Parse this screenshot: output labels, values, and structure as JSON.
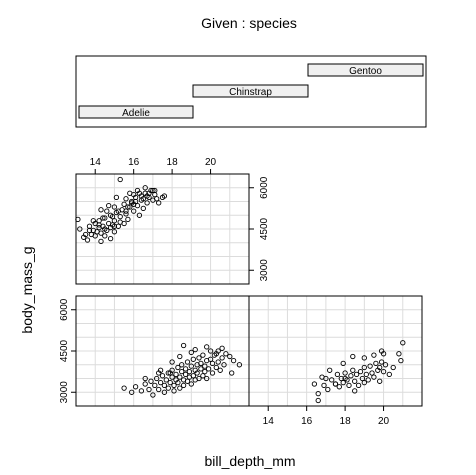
{
  "chart_data": {
    "type": "scatter",
    "title": "Given : species",
    "xlabel": "bill_depth_mm",
    "ylabel": "body_mass_g",
    "xlim": [
      13,
      22
    ],
    "ylim": [
      2500,
      6500
    ],
    "x_ticks": [
      "14",
      "16",
      "18",
      "20"
    ],
    "y_ticks": [
      "3000",
      "4500",
      "6000"
    ],
    "grid": true,
    "given_levels": [
      "Adelie",
      "Chinstrap",
      "Gentoo"
    ],
    "panels": [
      {
        "species": "Gentoo",
        "points": [
          [
            13.2,
            4500
          ],
          [
            13.4,
            4200
          ],
          [
            13.6,
            4100
          ],
          [
            13.7,
            4600
          ],
          [
            13.8,
            4300
          ],
          [
            13.9,
            4450
          ],
          [
            14.0,
            4700
          ],
          [
            14.1,
            4400
          ],
          [
            14.2,
            4550
          ],
          [
            14.2,
            4800
          ],
          [
            14.3,
            4350
          ],
          [
            14.4,
            4600
          ],
          [
            14.5,
            4250
          ],
          [
            14.5,
            4900
          ],
          [
            14.6,
            4450
          ],
          [
            14.7,
            4700
          ],
          [
            14.8,
            4550
          ],
          [
            14.8,
            5000
          ],
          [
            14.9,
            4650
          ],
          [
            15.0,
            4400
          ],
          [
            15.0,
            4800
          ],
          [
            15.1,
            5100
          ],
          [
            15.2,
            4600
          ],
          [
            15.3,
            4950
          ],
          [
            15.4,
            5200
          ],
          [
            15.5,
            4700
          ],
          [
            15.5,
            5400
          ],
          [
            15.6,
            5050
          ],
          [
            15.7,
            4850
          ],
          [
            15.8,
            5300
          ],
          [
            15.9,
            5500
          ],
          [
            16.0,
            5150
          ],
          [
            16.1,
            5650
          ],
          [
            16.2,
            5350
          ],
          [
            16.3,
            5000
          ],
          [
            16.4,
            5550
          ],
          [
            16.5,
            5250
          ],
          [
            16.6,
            5800
          ],
          [
            16.7,
            5450
          ],
          [
            16.8,
            5650
          ],
          [
            16.9,
            5900
          ],
          [
            17.0,
            5550
          ],
          [
            17.1,
            5750
          ],
          [
            17.3,
            5450
          ],
          [
            17.5,
            5650
          ],
          [
            14.3,
            5200
          ],
          [
            14.7,
            5350
          ],
          [
            15.1,
            5650
          ],
          [
            15.3,
            6300
          ],
          [
            15.8,
            5800
          ],
          [
            16.2,
            5900
          ],
          [
            16.6,
            6000
          ],
          [
            15.0,
            5300
          ],
          [
            14.6,
            5150
          ],
          [
            15.9,
            5450
          ],
          [
            13.5,
            4300
          ],
          [
            13.9,
            4800
          ],
          [
            14.4,
            4900
          ],
          [
            15.6,
            5600
          ],
          [
            16.0,
            5400
          ],
          [
            16.4,
            5700
          ],
          [
            16.8,
            5800
          ],
          [
            17.0,
            5900
          ],
          [
            17.2,
            5600
          ],
          [
            14.2,
            4650
          ],
          [
            14.9,
            4950
          ],
          [
            15.2,
            5150
          ],
          [
            15.7,
            5300
          ],
          [
            16.1,
            5500
          ],
          [
            16.5,
            5600
          ],
          [
            13.1,
            4850
          ],
          [
            13.7,
            4450
          ],
          [
            14.0,
            4250
          ],
          [
            14.3,
            4050
          ],
          [
            14.8,
            4150
          ],
          [
            15.3,
            4750
          ],
          [
            15.6,
            5150
          ],
          [
            16.0,
            5750
          ],
          [
            16.3,
            5800
          ],
          [
            16.7,
            5700
          ],
          [
            17.1,
            5900
          ],
          [
            17.6,
            5700
          ],
          [
            14.5,
            4500
          ],
          [
            15.0,
            4600
          ]
        ]
      },
      {
        "species": "Adelie",
        "points": [
          [
            15.5,
            3150
          ],
          [
            15.9,
            3000
          ],
          [
            16.1,
            3200
          ],
          [
            16.4,
            3050
          ],
          [
            16.6,
            3300
          ],
          [
            16.8,
            3100
          ],
          [
            16.9,
            3400
          ],
          [
            17.0,
            2900
          ],
          [
            17.1,
            3250
          ],
          [
            17.2,
            3500
          ],
          [
            17.3,
            3100
          ],
          [
            17.4,
            3350
          ],
          [
            17.5,
            3600
          ],
          [
            17.6,
            3000
          ],
          [
            17.6,
            3250
          ],
          [
            17.7,
            3450
          ],
          [
            17.8,
            3700
          ],
          [
            17.8,
            3150
          ],
          [
            17.9,
            3350
          ],
          [
            18.0,
            3550
          ],
          [
            18.0,
            3800
          ],
          [
            18.1,
            3250
          ],
          [
            18.1,
            3050
          ],
          [
            18.2,
            3450
          ],
          [
            18.2,
            3650
          ],
          [
            18.3,
            3900
          ],
          [
            18.3,
            3350
          ],
          [
            18.4,
            3550
          ],
          [
            18.4,
            3150
          ],
          [
            18.5,
            3750
          ],
          [
            18.5,
            4000
          ],
          [
            18.6,
            3450
          ],
          [
            18.6,
            3250
          ],
          [
            18.7,
            3650
          ],
          [
            18.7,
            3850
          ],
          [
            18.8,
            3400
          ],
          [
            18.8,
            4100
          ],
          [
            18.9,
            3550
          ],
          [
            18.9,
            3750
          ],
          [
            19.0,
            3300
          ],
          [
            19.0,
            3950
          ],
          [
            19.1,
            3600
          ],
          [
            19.1,
            4200
          ],
          [
            19.2,
            3450
          ],
          [
            19.2,
            3800
          ],
          [
            19.3,
            4000
          ],
          [
            19.3,
            3700
          ],
          [
            19.4,
            3500
          ],
          [
            19.4,
            4250
          ],
          [
            19.5,
            3850
          ],
          [
            19.5,
            4050
          ],
          [
            19.6,
            3600
          ],
          [
            19.6,
            4350
          ],
          [
            19.7,
            3950
          ],
          [
            19.7,
            3750
          ],
          [
            19.8,
            4150
          ],
          [
            19.8,
            3500
          ],
          [
            19.9,
            3850
          ],
          [
            20.0,
            4200
          ],
          [
            20.0,
            4500
          ],
          [
            20.1,
            3700
          ],
          [
            20.1,
            4050
          ],
          [
            20.2,
            4350
          ],
          [
            20.3,
            3900
          ],
          [
            20.3,
            4400
          ],
          [
            20.4,
            4100
          ],
          [
            20.5,
            3800
          ],
          [
            20.6,
            4250
          ],
          [
            20.6,
            4600
          ],
          [
            20.7,
            4000
          ],
          [
            20.8,
            4400
          ],
          [
            21.0,
            4300
          ],
          [
            21.1,
            3700
          ],
          [
            21.2,
            4150
          ],
          [
            21.5,
            4000
          ],
          [
            17.4,
            3800
          ],
          [
            18.0,
            4100
          ],
          [
            18.6,
            4700
          ],
          [
            19.2,
            4550
          ],
          [
            19.8,
            4650
          ],
          [
            20.4,
            4500
          ],
          [
            19.0,
            4450
          ],
          [
            18.4,
            4300
          ],
          [
            17.9,
            3700
          ],
          [
            16.6,
            3500
          ],
          [
            17.3,
            3700
          ]
        ]
      },
      {
        "species": "Chinstrap",
        "points": [
          [
            16.4,
            3300
          ],
          [
            16.6,
            2950
          ],
          [
            16.6,
            2700
          ],
          [
            16.9,
            3250
          ],
          [
            17.0,
            3500
          ],
          [
            17.1,
            3100
          ],
          [
            17.3,
            3450
          ],
          [
            17.5,
            3300
          ],
          [
            17.6,
            3650
          ],
          [
            17.7,
            3200
          ],
          [
            17.8,
            3500
          ],
          [
            17.9,
            3350
          ],
          [
            18.0,
            3700
          ],
          [
            18.1,
            3450
          ],
          [
            18.2,
            3250
          ],
          [
            18.3,
            3600
          ],
          [
            18.4,
            3800
          ],
          [
            18.5,
            3400
          ],
          [
            18.6,
            3650
          ],
          [
            18.7,
            3250
          ],
          [
            18.8,
            3750
          ],
          [
            18.9,
            3500
          ],
          [
            19.0,
            3900
          ],
          [
            19.0,
            3350
          ],
          [
            19.1,
            3650
          ],
          [
            19.2,
            3450
          ],
          [
            19.3,
            3950
          ],
          [
            19.4,
            3700
          ],
          [
            19.5,
            3550
          ],
          [
            19.6,
            4050
          ],
          [
            19.7,
            3800
          ],
          [
            19.8,
            3400
          ],
          [
            19.9,
            4100
          ],
          [
            20.0,
            3750
          ],
          [
            20.1,
            4000
          ],
          [
            20.3,
            3650
          ],
          [
            20.5,
            3900
          ],
          [
            20.8,
            4400
          ],
          [
            20.9,
            4150
          ],
          [
            20.0,
            4400
          ],
          [
            19.5,
            4350
          ],
          [
            19.0,
            4250
          ],
          [
            17.9,
            4050
          ],
          [
            16.8,
            3550
          ],
          [
            17.2,
            3800
          ],
          [
            18.4,
            4300
          ],
          [
            19.9,
            4500
          ],
          [
            21.0,
            4800
          ],
          [
            18.0,
            3500
          ],
          [
            18.5,
            3050
          ],
          [
            17.5,
            3300
          ],
          [
            19.8,
            3900
          ]
        ]
      }
    ]
  }
}
